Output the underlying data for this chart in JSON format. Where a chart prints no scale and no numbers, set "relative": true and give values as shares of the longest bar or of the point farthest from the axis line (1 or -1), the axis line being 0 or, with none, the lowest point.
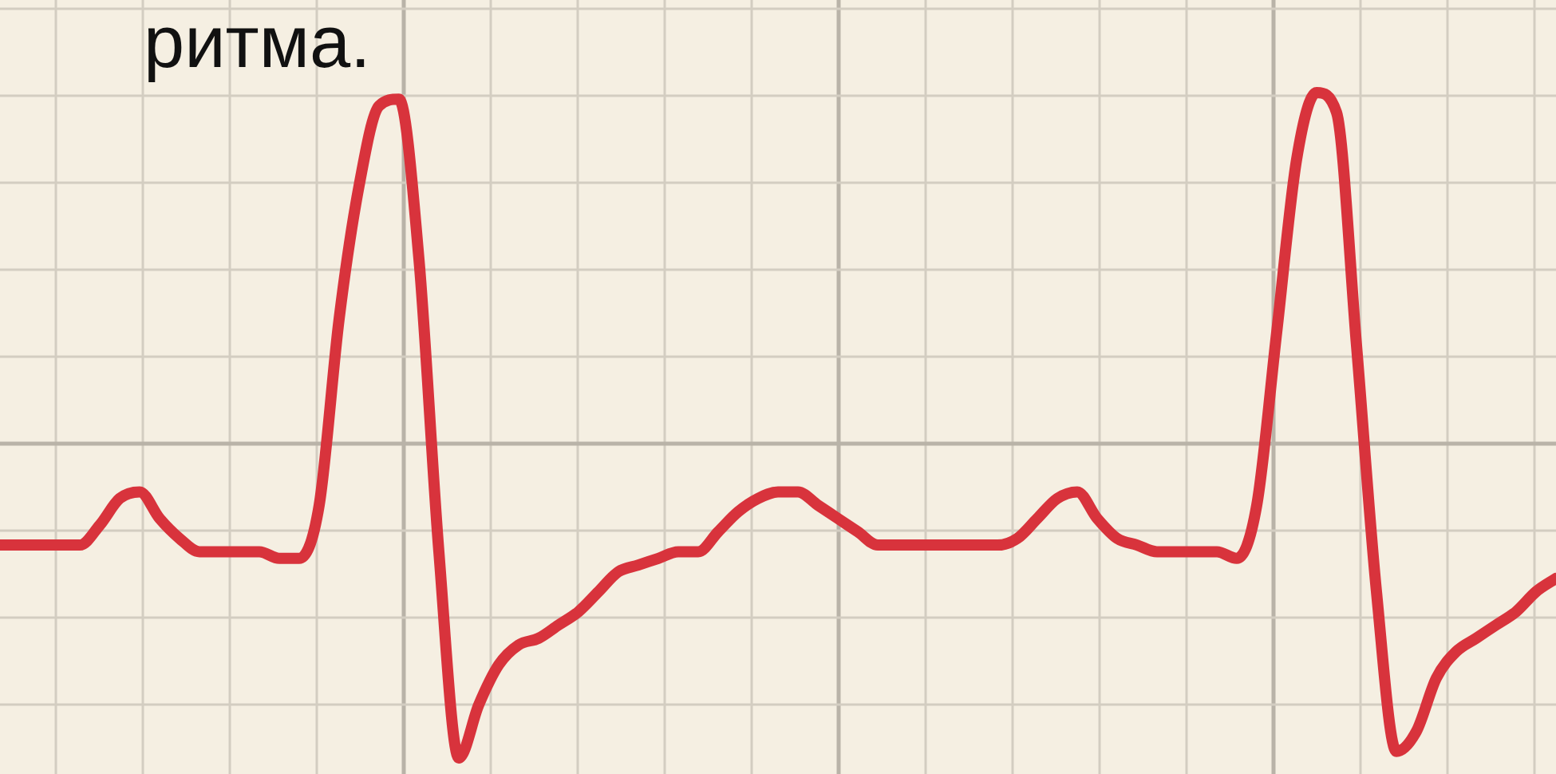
{
  "chart_data": {
    "type": "line",
    "title": "ритма.",
    "relative": true,
    "grid": true,
    "legend": false,
    "marker": "none",
    "line_style": "solid",
    "categories": [
      null,
      null,
      null,
      null,
      null,
      null,
      null,
      null,
      null,
      null,
      null,
      null,
      null,
      null,
      null,
      null,
      null,
      null,
      null,
      null,
      null,
      null,
      null,
      null,
      null,
      null,
      null,
      null,
      null,
      null,
      null,
      null,
      null,
      null,
      null,
      null,
      null,
      null,
      null,
      null,
      null,
      null,
      null,
      null,
      null,
      null,
      null,
      null,
      null,
      null,
      null,
      null,
      null,
      null,
      null,
      null,
      null,
      null,
      null,
      null,
      null,
      null,
      null,
      null,
      null,
      null,
      null,
      null,
      null,
      null,
      null,
      null,
      null,
      null,
      null,
      null,
      null,
      null,
      null
    ],
    "series": [
      {
        "color": "#d8333c",
        "values": [
          0.32,
          0.32,
          0.32,
          0.32,
          0.32,
          0.35,
          0.39,
          0.4,
          0.36,
          0.33,
          0.31,
          0.31,
          0.31,
          0.31,
          0.3,
          0.3,
          0.38,
          0.66,
          0.86,
          0.98,
          0.99,
          0.75,
          0.31,
          0,
          0.08,
          0.14,
          0.17,
          0.18,
          0.2,
          0.22,
          0.25,
          0.28,
          0.29,
          0.3,
          0.31,
          0.31,
          0.34,
          0.37,
          0.39,
          0.4,
          0.4,
          0.38,
          0.36,
          0.34,
          0.32,
          0.32,
          0.32,
          0.32,
          0.32,
          0.32,
          0.32,
          0.33,
          0.36,
          0.39,
          0.4,
          0.36,
          0.33,
          0.32,
          0.31,
          0.31,
          0.31,
          0.31,
          0.3,
          0.38,
          0.64,
          0.9,
          1,
          0.97,
          0.62,
          0.25,
          0.01,
          0.04,
          0.12,
          0.16,
          0.18,
          0.2,
          0.22,
          0.25,
          0.27
        ]
      }
    ]
  }
}
